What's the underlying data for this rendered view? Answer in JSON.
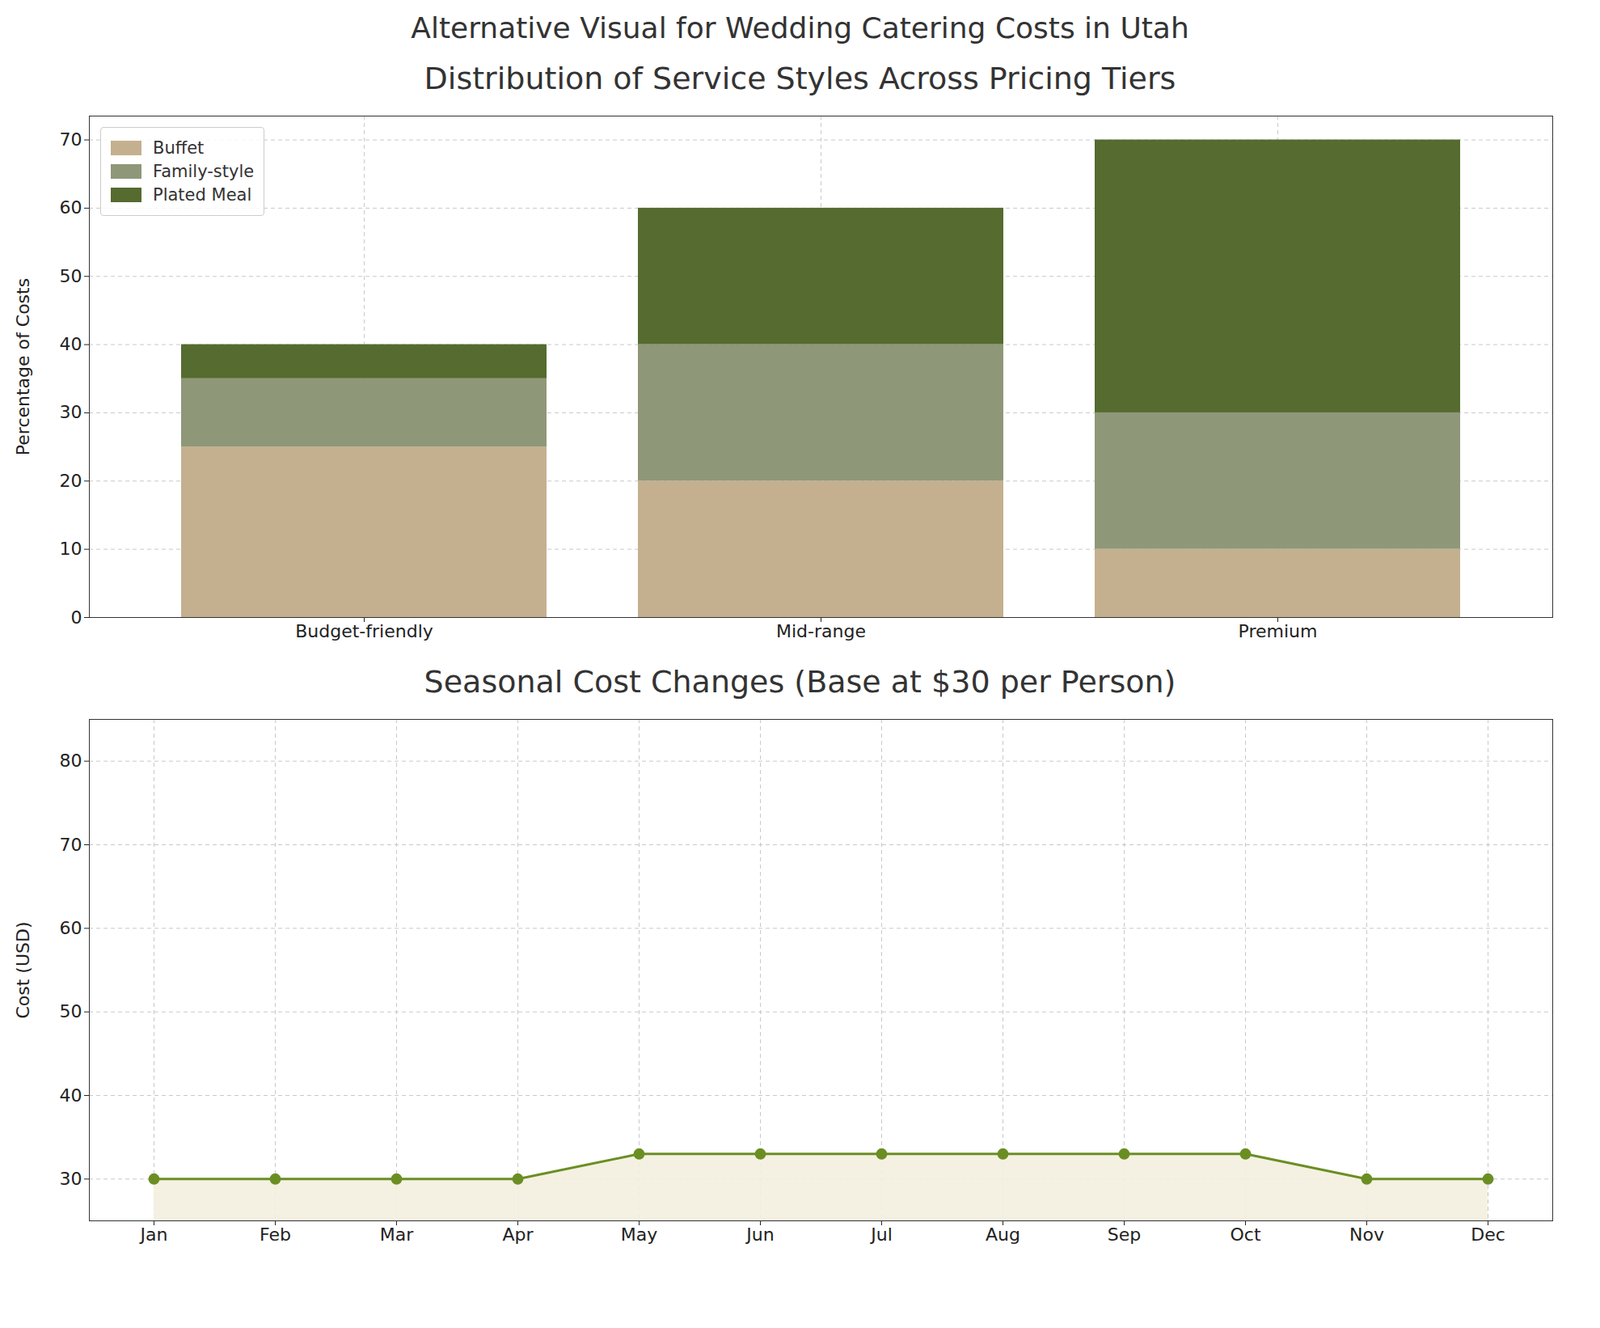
{
  "title": "Alternative Visual for Wedding Catering Costs in Utah",
  "chart_data": [
    {
      "type": "bar",
      "title": "Distribution of Service Styles Across Pricing Tiers",
      "y_label": "Percentage of Costs",
      "categories": [
        "Budget-friendly",
        "Mid-range",
        "Premium"
      ],
      "stacked": true,
      "series": [
        {
          "name": "Buffet",
          "color": "#c4b08f",
          "values": [
            25,
            20,
            10
          ]
        },
        {
          "name": "Family-style",
          "color": "#8f9779",
          "values": [
            10,
            20,
            20
          ]
        },
        {
          "name": "Plated Meal",
          "color": "#556b2f",
          "values": [
            5,
            20,
            40
          ]
        }
      ],
      "ylim": [
        0,
        73.5
      ],
      "yticks": [
        0,
        10,
        20,
        30,
        40,
        50,
        60,
        70
      ],
      "grid": true,
      "legend": "upper left"
    },
    {
      "type": "line",
      "title": "Seasonal Cost Changes (Base at $30 per Person)",
      "y_label": "Cost (USD)",
      "categories": [
        "Jan",
        "Feb",
        "Mar",
        "Apr",
        "May",
        "Jun",
        "Jul",
        "Aug",
        "Sep",
        "Oct",
        "Nov",
        "Dec"
      ],
      "values": [
        30,
        30,
        30,
        30,
        33,
        33,
        33,
        33,
        33,
        33,
        30,
        30
      ],
      "color": "#6b8e23",
      "marker": "o",
      "ylim": [
        25,
        85
      ],
      "yticks": [
        30,
        40,
        50,
        60,
        70,
        80
      ],
      "grid": true
    }
  ]
}
